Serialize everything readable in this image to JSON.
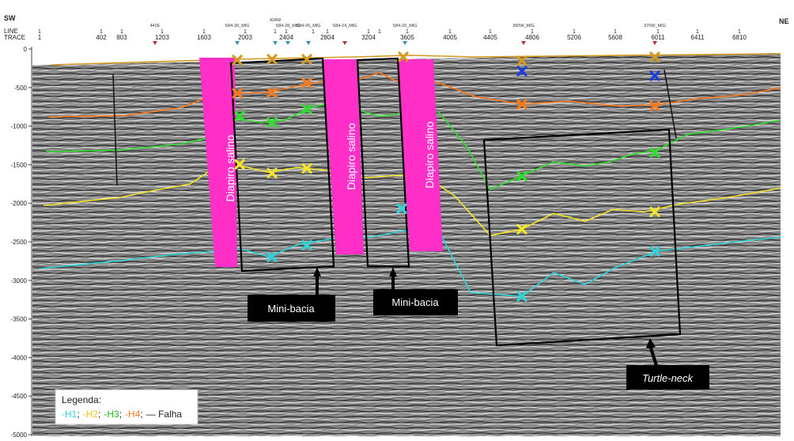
{
  "header": {
    "left_dir": "SW",
    "right_dir": "NE",
    "row_line_label": "LINE",
    "row_trace_label": "TRACE",
    "line_values": [
      "1",
      "1",
      "1",
      "1",
      "1",
      "1",
      "1",
      "1",
      "1",
      "1",
      "1",
      "1",
      "1",
      "1",
      "1",
      "1",
      "1",
      "1",
      "1",
      "1",
      "1"
    ],
    "trace_values": [
      "1",
      "402",
      "803",
      "1203",
      "1603",
      "2003",
      "2404",
      "2804",
      "3204",
      "3605",
      "4005",
      "4405",
      "4806",
      "5206",
      "5608",
      "6011",
      "6411",
      "6810"
    ],
    "tie_lines": [
      "442E",
      "S84-30_MIG",
      "424W",
      "S84-28_MIG",
      "S84-26_MIG",
      "S84-24_MIG",
      "S84-20_MIG",
      "390W_MIG",
      "370W_MIG"
    ]
  },
  "y_axis": {
    "ticks": [
      "0",
      "-500",
      "-1000",
      "-1500",
      "-2000",
      "-2500",
      "-3000",
      "-3500",
      "-4000",
      "-4500",
      "-5000"
    ]
  },
  "annotations": {
    "diapir_1": "Diapiro salino",
    "diapir_2": "Diapiro salino",
    "diapir_3": "Diapiro salino",
    "minibasin_1": "Mini-bacia",
    "minibasin_2": "Mini-bacia",
    "turtle": "Turtle-neck"
  },
  "legend": {
    "title": "Legenda:",
    "h1": "-H1",
    "h2": "-H2",
    "h3": "-H3",
    "h4": "-H4",
    "fault": "— Falha",
    "sep": ";"
  },
  "colors": {
    "h1": "#2fd3d8",
    "h2": "#f3e62a",
    "h3": "#2ee02e",
    "h4": "#ff7a1a",
    "top": "#d39a22",
    "blue_x": "#1a3fe0",
    "diapir": "#ff2fc8"
  }
}
